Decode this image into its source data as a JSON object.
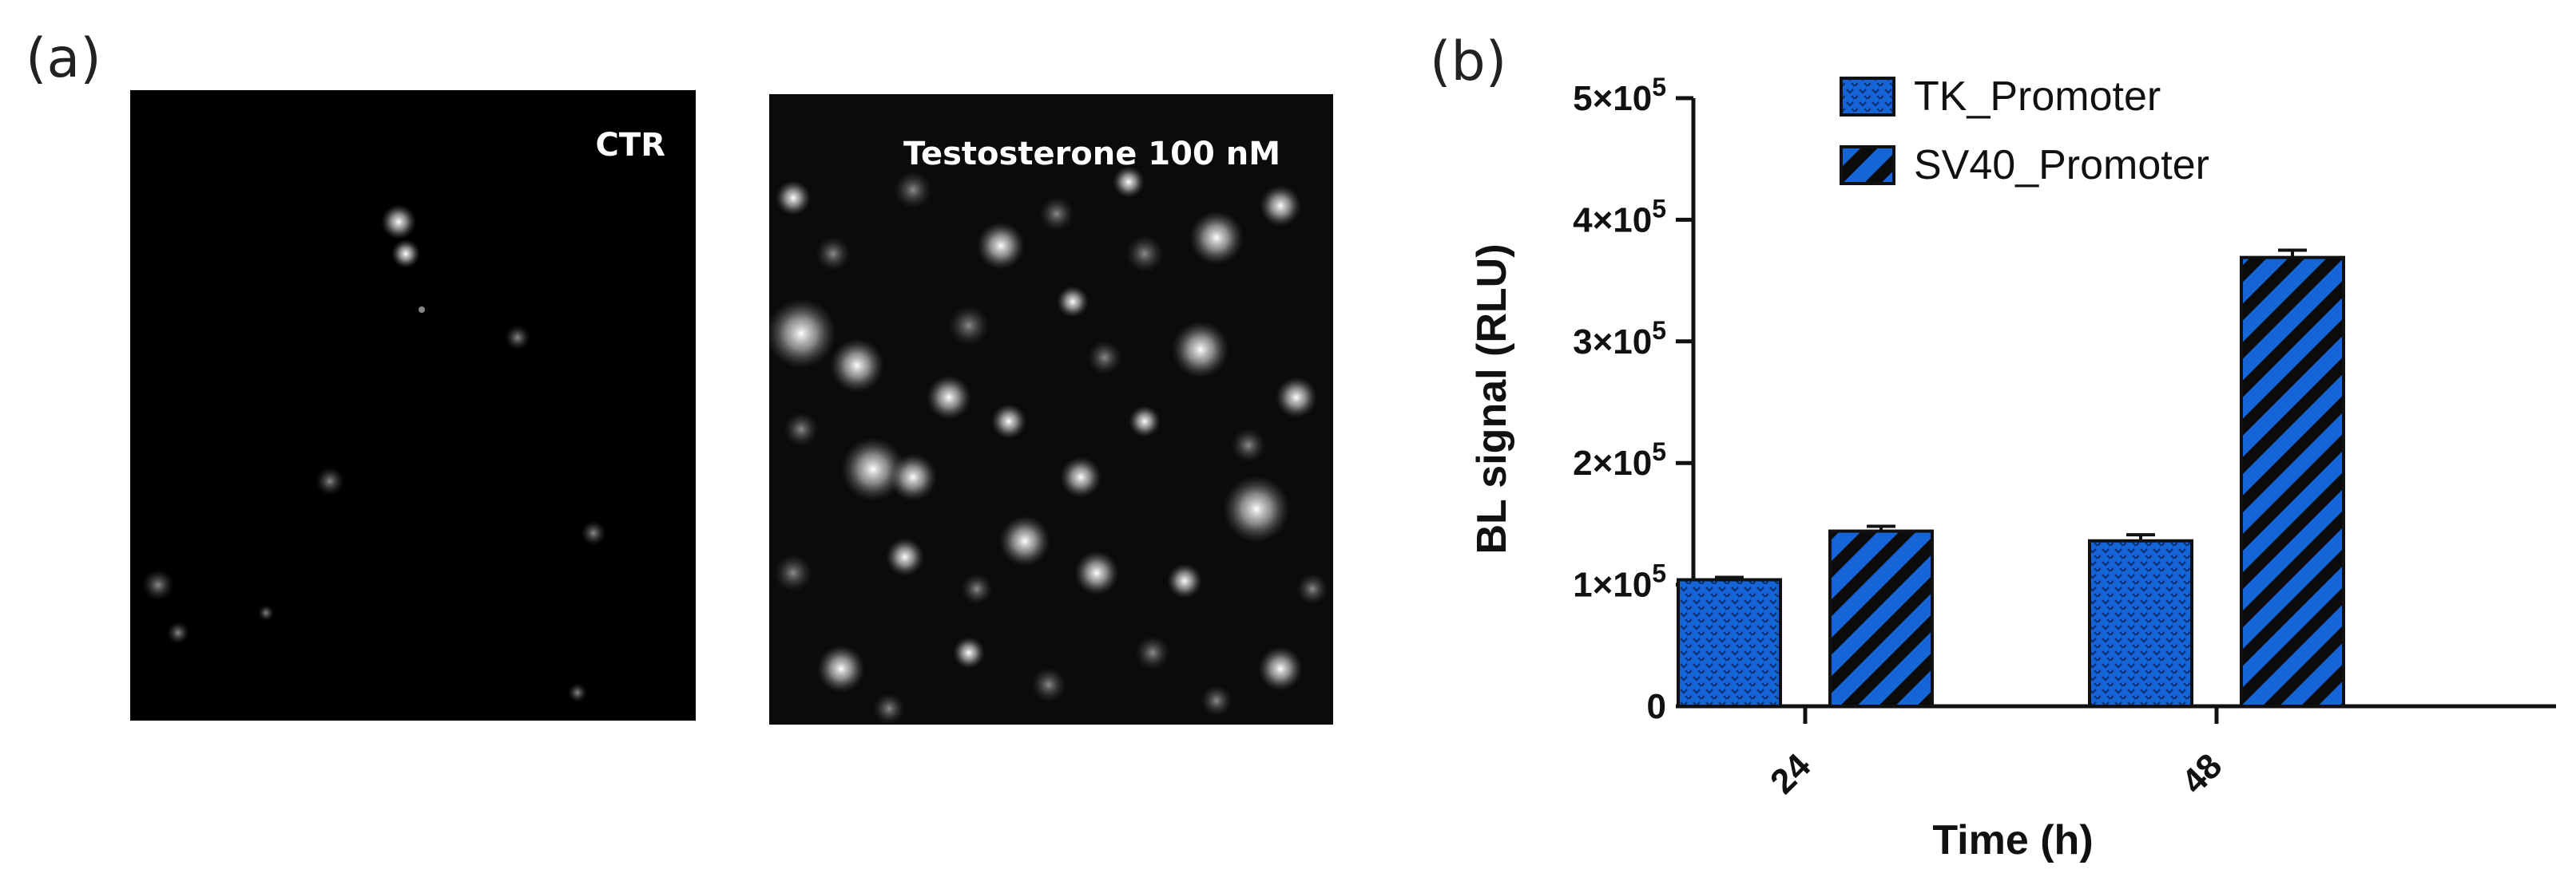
{
  "panels": {
    "a": {
      "letter": "(a)",
      "images": [
        {
          "label": "CTR",
          "style": "sparse-cells"
        },
        {
          "label": "Testosterone 100 nM",
          "style": "dense-cells"
        }
      ]
    },
    "b": {
      "letter": "(b)"
    }
  },
  "chart_data": {
    "type": "bar",
    "xlabel": "Time (h)",
    "ylabel": "BL signal (RLU)",
    "categories": [
      "24",
      "48"
    ],
    "ylim": [
      0,
      500000
    ],
    "yticks": [
      {
        "value": 0,
        "mant": "0",
        "exp": ""
      },
      {
        "value": 100000,
        "mant": "1×10",
        "exp": "5"
      },
      {
        "value": 200000,
        "mant": "2×10",
        "exp": "5"
      },
      {
        "value": 300000,
        "mant": "3×10",
        "exp": "5"
      },
      {
        "value": 400000,
        "mant": "4×10",
        "exp": "5"
      },
      {
        "value": 500000,
        "mant": "5×10",
        "exp": "5"
      }
    ],
    "series": [
      {
        "name": "TK_Promoter",
        "values": [
          104000,
          136000
        ],
        "errors": [
          2000,
          5000
        ],
        "pattern": "dots",
        "color": "#1565d8"
      },
      {
        "name": "SV40_Promoter",
        "values": [
          144000,
          369000
        ],
        "errors": [
          4000,
          6000
        ],
        "pattern": "diagonal-stripes",
        "color": "#1565d8"
      }
    ],
    "legend": "top-center",
    "grid": false
  }
}
